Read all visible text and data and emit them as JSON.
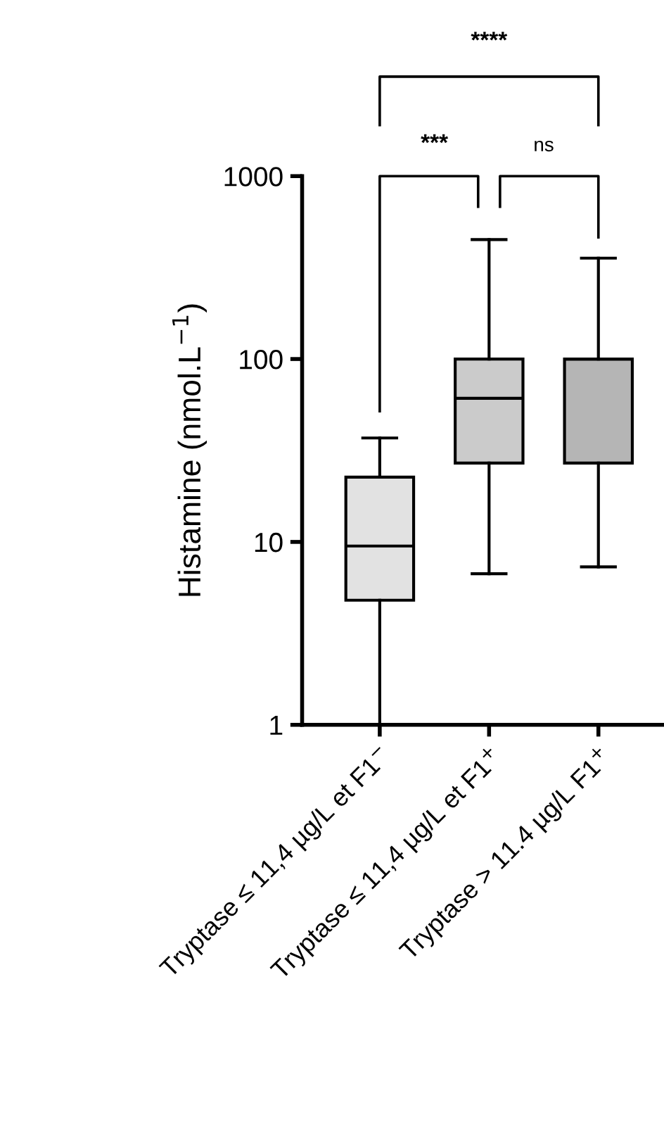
{
  "chart_data": {
    "type": "box",
    "categories": [
      "Tryptase ≤ 11,4 µg/L et F1$^{−}$",
      "Tryptase ≤ 11,4 µg/L et F1$^{+}$",
      "Tryptase > 11.4 µg/L F1$^{+}$"
    ],
    "ylabel": "Histamine (nmol.L$^{−1}$)",
    "log": true,
    "ylim": [
      1,
      1000
    ],
    "yticks": [
      1,
      10,
      100,
      1000
    ],
    "grid": false,
    "colors": [
      "#e2e2e2",
      "#cbcbcb",
      "#b5b5b5"
    ],
    "boxes": [
      {
        "low": 1,
        "q1": 4.8,
        "median": 9.5,
        "q3": 22.6,
        "high": 37
      },
      {
        "low": 6.7,
        "q1": 27,
        "median": 61,
        "q3": 100,
        "high": 450
      },
      {
        "low": 7.3,
        "q1": 27,
        "median": 100,
        "q3": 100,
        "high": 356
      }
    ],
    "annotations": [
      "****",
      "***",
      "ns"
    ]
  }
}
